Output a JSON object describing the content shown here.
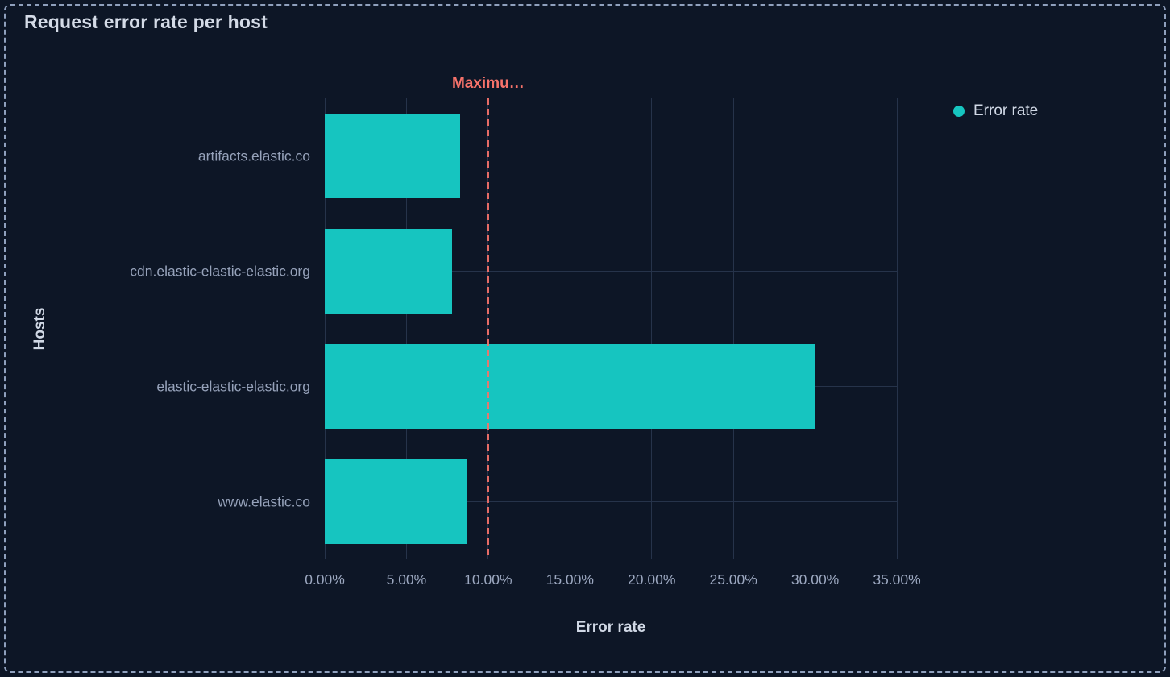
{
  "panel": {
    "title": "Request error rate per host"
  },
  "legend": {
    "position": "top-right",
    "items": [
      {
        "label": "Error rate",
        "color": "#16C5C0",
        "marker": "circle-dot-icon"
      }
    ]
  },
  "chart_data": {
    "type": "bar",
    "orientation": "horizontal",
    "title": "Request error rate per host",
    "xlabel": "Error rate",
    "ylabel": "Hosts",
    "categories": [
      "artifacts.elastic.co",
      "cdn.elastic-elastic-elastic.org",
      "elastic-elastic-elastic.org",
      "www.elastic.co"
    ],
    "series": [
      {
        "name": "Error rate",
        "color": "#16C5C0",
        "values": [
          8.3,
          7.8,
          30.0,
          8.7
        ]
      }
    ],
    "value_unit": "%",
    "xlim": [
      0,
      35
    ],
    "x_tick_values": [
      0,
      5,
      10,
      15,
      20,
      25,
      30,
      35
    ],
    "x_tick_labels": [
      "0.00%",
      "5.00%",
      "10.00%",
      "15.00%",
      "20.00%",
      "25.00%",
      "30.00%",
      "35.00%"
    ],
    "grid": true,
    "legend_position": "right",
    "reference_line": {
      "value": 10,
      "label": "Maximu…",
      "color": "#F6726A",
      "style": "dashed"
    }
  },
  "colors": {
    "background": "#0D1626",
    "panel_border": "#8FA0BD",
    "gridline": "#26334A",
    "axis_line": "#31405C",
    "bar": "#16C5C0",
    "reference": "#F6726A",
    "title_text": "#D4DBE7",
    "axis_label_text": "#96A2BA",
    "axis_title_text": "#D0D8E5"
  }
}
